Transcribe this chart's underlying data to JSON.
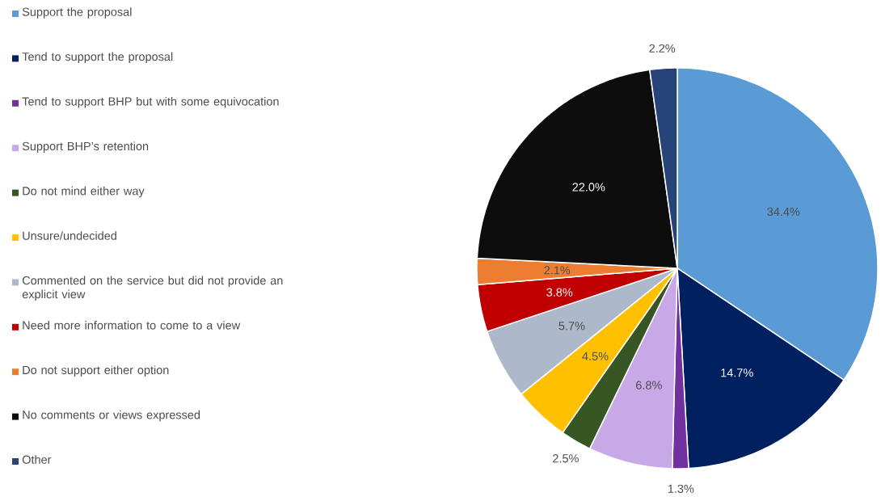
{
  "chart_data": {
    "type": "pie",
    "legend": "left",
    "value_labels": [
      "34.4%",
      "14.7%",
      "1.3%",
      "6.8%",
      "2.5%",
      "4.5%",
      "5.7%",
      "3.8%",
      "2.1%",
      "22.0%",
      "2.2%"
    ],
    "categories": [
      "Support the proposal",
      "Tend to support the proposal",
      "Tend to support BHP but with some equivocation",
      "Support BHP’s retention",
      "Do not mind either way",
      "Unsure/undecided",
      "Commented on the service but did not provide an explicit view",
      "Need more information to come to a view",
      "Do not support either option",
      "No comments or views expressed",
      "Other"
    ],
    "values": [
      34.4,
      14.7,
      1.3,
      6.8,
      2.5,
      4.5,
      5.7,
      3.8,
      2.1,
      22.0,
      2.2
    ],
    "colors": [
      "#5b9bd5",
      "#002060",
      "#7030a0",
      "#c9a8e8",
      "#375623",
      "#ffc000",
      "#adb9ca",
      "#c00000",
      "#ed7d31",
      "#0d0d0d",
      "#264478"
    ]
  }
}
